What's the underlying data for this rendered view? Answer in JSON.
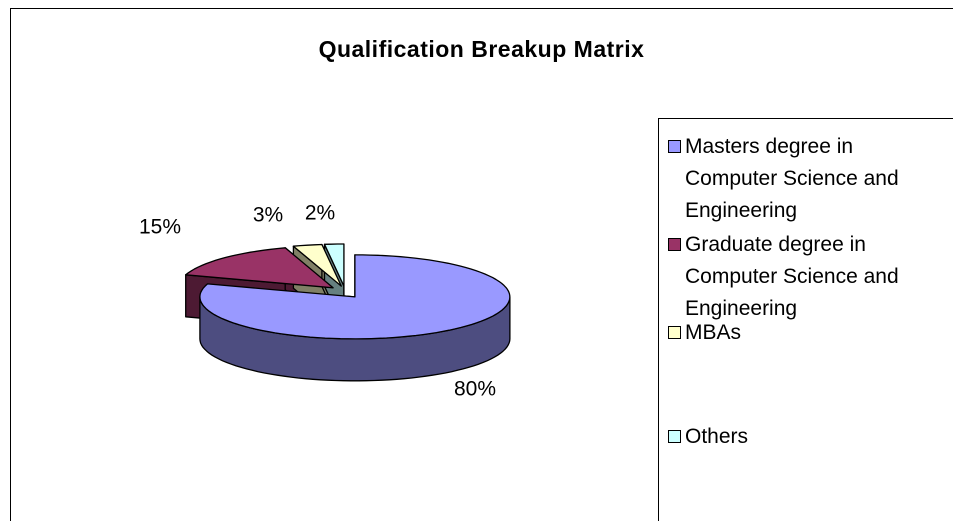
{
  "chart_data": {
    "type": "pie",
    "title": "Qualification Breakup Matrix",
    "categories": [
      "Masters degree in Computer Science and Engineering",
      "Graduate degree in Computer Science and Engineering",
      "MBAs",
      "Others"
    ],
    "values": [
      80,
      15,
      3,
      2
    ],
    "value_labels": [
      "80%",
      "15%",
      "3%",
      "2%"
    ],
    "colors": [
      "#9999ff",
      "#993366",
      "#ffffcc",
      "#ccffff"
    ],
    "legend": "right"
  }
}
